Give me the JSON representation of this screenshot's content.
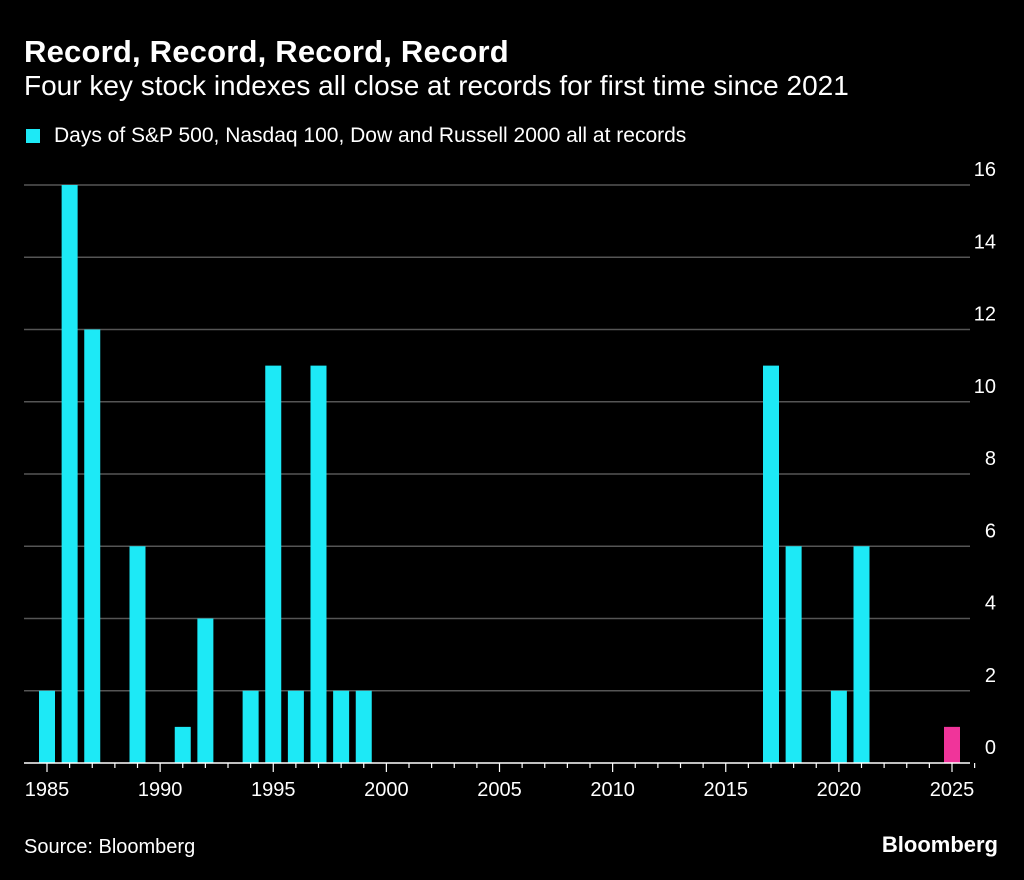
{
  "chart_data": {
    "type": "bar",
    "title": "Record, Record, Record, Record",
    "subtitle": "Four key stock indexes all close at records for first time since 2021",
    "series": [
      {
        "name": "Days of S&P 500, Nasdaq 100, Dow and Russell 2000 all at records",
        "color": "#1de9f6",
        "highlight_color": "#f0349a",
        "x": [
          1985,
          1986,
          1987,
          1989,
          1991,
          1992,
          1994,
          1995,
          1996,
          1997,
          1998,
          1999,
          2017,
          2018,
          2020,
          2021,
          2025
        ],
        "values": [
          2,
          16,
          12,
          6,
          1,
          4,
          2,
          11,
          2,
          11,
          2,
          2,
          11,
          6,
          2,
          6,
          1
        ],
        "highlight_x": [
          2025
        ]
      }
    ],
    "xlim": [
      1984.5,
      2026.5
    ],
    "ylim": [
      0,
      16
    ],
    "x_ticks": [
      "1985",
      "1990",
      "1995",
      "2000",
      "2005",
      "2010",
      "2015",
      "2020",
      "2025"
    ],
    "y_ticks": [
      "0",
      "2",
      "4",
      "6",
      "8",
      "10",
      "12",
      "14",
      "16"
    ],
    "y_axis_position": "right",
    "grid": true,
    "legend_position": "top-left",
    "source": "Source: Bloomberg",
    "brand": "Bloomberg",
    "colors": {
      "background": "#000000",
      "grid": "#555555",
      "text": "#ffffff"
    }
  }
}
